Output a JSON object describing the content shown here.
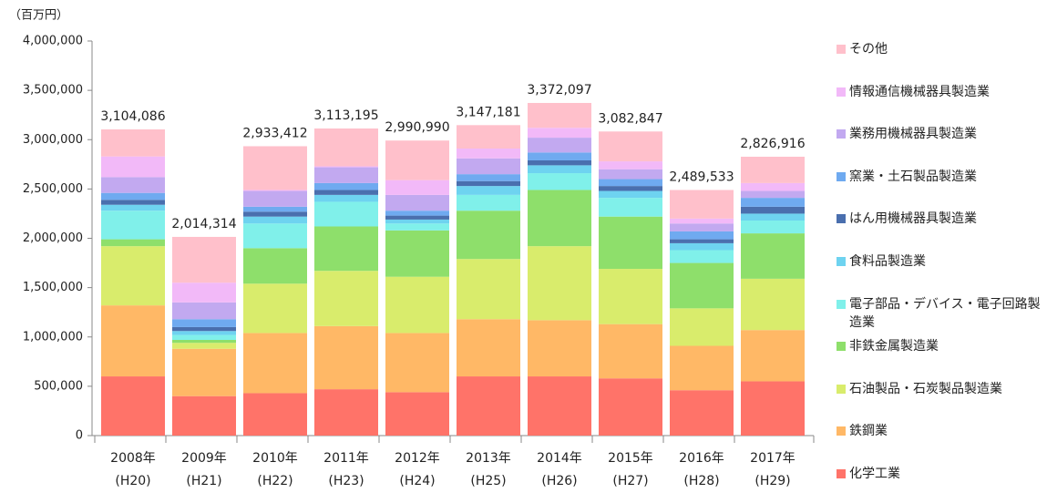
{
  "chart_data": {
    "type": "stacked_bar",
    "y_axis_unit": "（百万円）",
    "categories": [
      "2008年",
      "2009年",
      "2010年",
      "2011年",
      "2012年",
      "2013年",
      "2014年",
      "2015年",
      "2016年",
      "2017年"
    ],
    "category_sublabels": [
      "(H20)",
      "(H21)",
      "(H22)",
      "(H23)",
      "(H24)",
      "(H25)",
      "(H26)",
      "(H27)",
      "(H28)",
      "(H29)"
    ],
    "ylim": [
      0,
      4000000
    ],
    "yticks": [
      0,
      {
        "value": 500000,
        "label": "500,000"
      },
      {
        "value": 1000000,
        "label": "1,000,000"
      },
      {
        "value": 1500000,
        "label": "1,500,000"
      },
      {
        "value": 2000000,
        "label": "2,000,000"
      },
      {
        "value": 2500000,
        "label": "2,500,000"
      },
      {
        "value": 3000000,
        "label": "3,000,000"
      },
      {
        "value": 3500000,
        "label": "3,500,000"
      },
      {
        "value": 4000000,
        "label": "4,000,000"
      }
    ],
    "totals": [
      3104086,
      2014314,
      2933412,
      3113195,
      2990990,
      3147181,
      3372097,
      3082847,
      2489533,
      2826916
    ],
    "total_labels": [
      "3,104,086",
      "2,014,314",
      "2,933,412",
      "3,113,195",
      "2,990,990",
      "3,147,181",
      "3,372,097",
      "3,082,847",
      "2,489,533",
      "2,826,916"
    ],
    "series": [
      {
        "name": "化学工業",
        "color": "#ff7369",
        "values": [
          600000,
          400000,
          430000,
          470000,
          440000,
          600000,
          600000,
          580000,
          460000,
          550000
        ]
      },
      {
        "name": "鉄鋼業",
        "color": "#ffb866",
        "values": [
          720000,
          480000,
          610000,
          640000,
          600000,
          580000,
          570000,
          550000,
          450000,
          520000
        ]
      },
      {
        "name": "石油製品・石炭製品製造業",
        "color": "#d9ec6c",
        "values": [
          600000,
          60000,
          500000,
          560000,
          570000,
          610000,
          750000,
          560000,
          380000,
          520000
        ]
      },
      {
        "name": "非鉄金属製造業",
        "color": "#8edf6b",
        "values": [
          70000,
          30000,
          360000,
          450000,
          470000,
          490000,
          570000,
          530000,
          460000,
          460000
        ]
      },
      {
        "name": "電子部品・デバイス・電子回路製造業",
        "color": "#80f0ea",
        "values": [
          290000,
          50000,
          250000,
          250000,
          70000,
          160000,
          170000,
          190000,
          130000,
          130000
        ]
      },
      {
        "name": "食料品製造業",
        "color": "#6ed3f0",
        "values": [
          60000,
          40000,
          70000,
          70000,
          40000,
          90000,
          80000,
          70000,
          70000,
          70000
        ]
      },
      {
        "name": "はん用機械器具製造業",
        "color": "#4a6fae",
        "values": [
          50000,
          40000,
          50000,
          50000,
          40000,
          50000,
          50000,
          50000,
          40000,
          70000
        ]
      },
      {
        "name": "窯業・土石製品製造業",
        "color": "#6faaf0",
        "values": [
          70000,
          80000,
          50000,
          70000,
          50000,
          70000,
          80000,
          70000,
          80000,
          90000
        ]
      },
      {
        "name": "業務用機械器具製造業",
        "color": "#c2a9f0",
        "values": [
          160000,
          170000,
          160000,
          160000,
          160000,
          160000,
          150000,
          100000,
          80000,
          70000
        ]
      },
      {
        "name": "情報通信機械器具製造業",
        "color": "#f2b9f8",
        "values": [
          210000,
          200000,
          10000,
          10000,
          150000,
          100000,
          100000,
          80000,
          50000,
          80000
        ]
      },
      {
        "name": "その他",
        "color": "#ffc0cb",
        "values": [
          274086,
          464314,
          443412,
          383195,
          400990,
          237181,
          252097,
          302847,
          289533,
          266916
        ]
      }
    ]
  }
}
